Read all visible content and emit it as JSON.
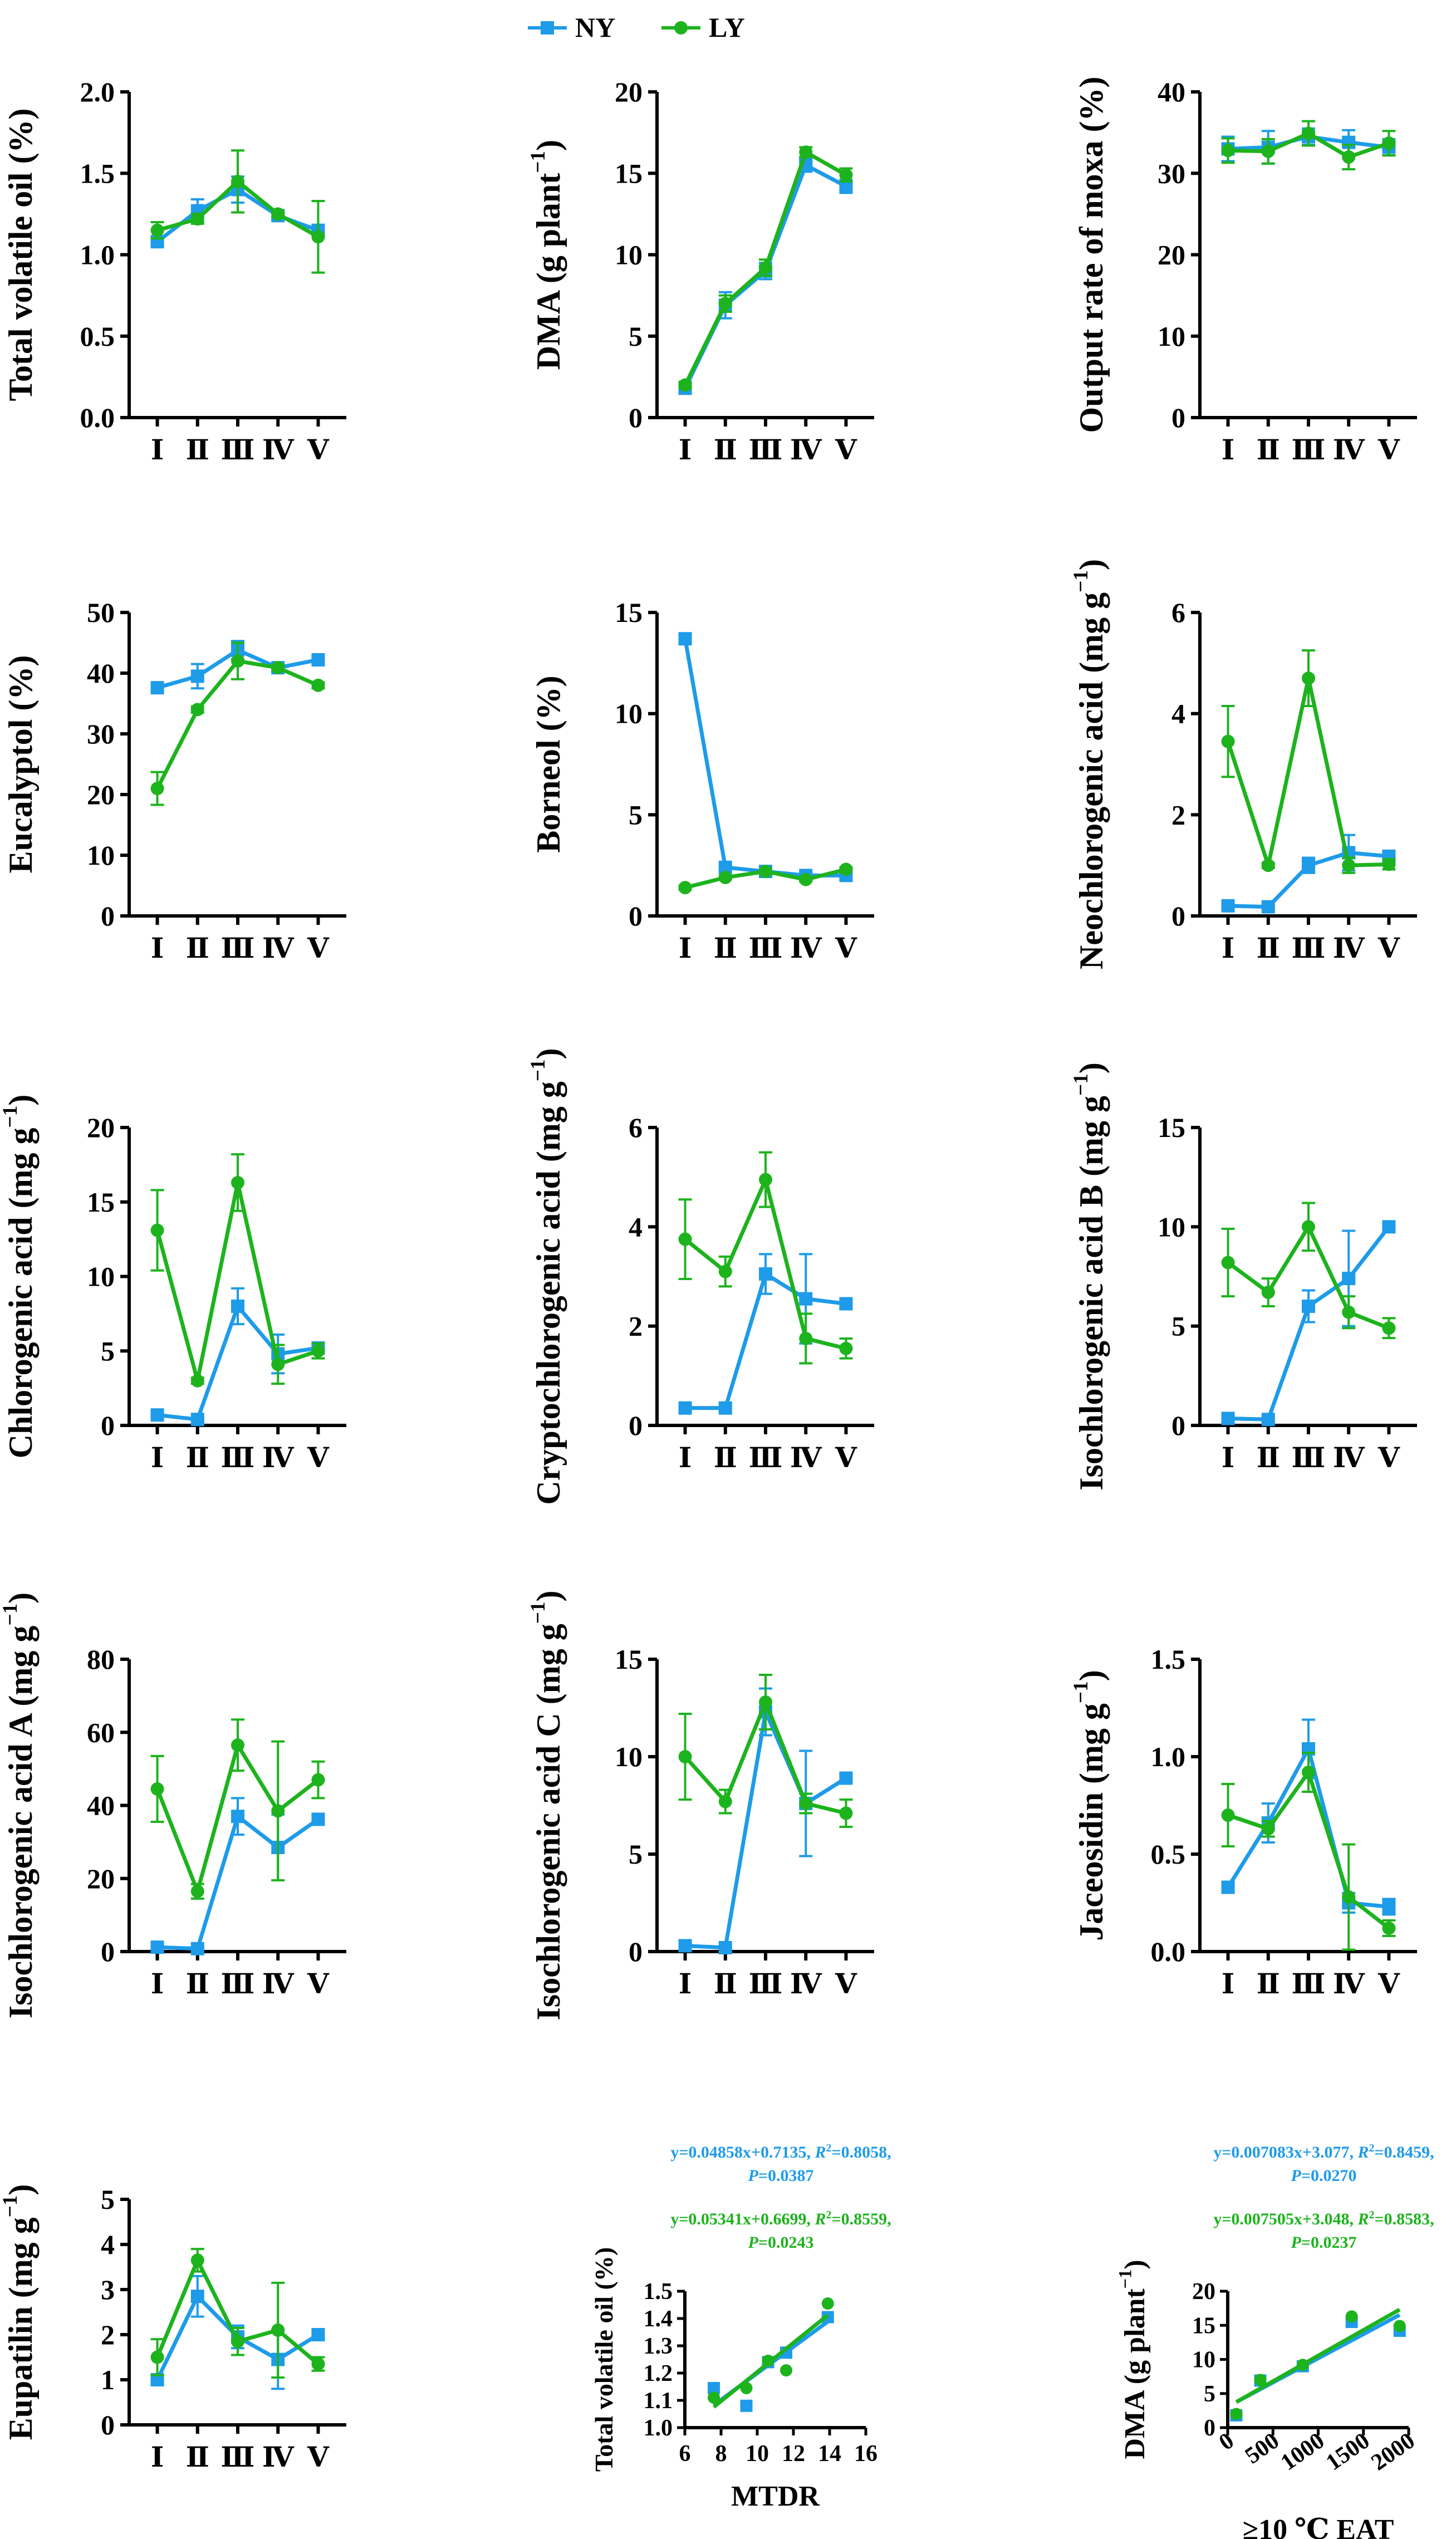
{
  "colors": {
    "NY": "#1E9BE9",
    "LY": "#1DB31D"
  },
  "legend": [
    {
      "label": "NY",
      "color": "#1E9BE9",
      "marker": "square"
    },
    {
      "label": "LY",
      "color": "#1DB31D",
      "marker": "circle"
    }
  ],
  "chart_data": [
    {
      "type": "line",
      "title": "",
      "xlabel": "",
      "ylabel": "Total volatile oil (%)",
      "categories": [
        "Ⅰ",
        "Ⅱ",
        "Ⅲ",
        "Ⅳ",
        "Ⅴ"
      ],
      "ylim": [
        0,
        2
      ],
      "yticks": [
        "0.0",
        "0.5",
        "1.0",
        "1.5",
        "2.0"
      ],
      "series": [
        {
          "name": "NY",
          "values": [
            1.08,
            1.27,
            1.4,
            1.24,
            1.15
          ],
          "errors": [
            0.02,
            0.07,
            0.08,
            0.02,
            0.02
          ]
        },
        {
          "name": "LY",
          "values": [
            1.15,
            1.22,
            1.45,
            1.25,
            1.11
          ],
          "errors": [
            0.05,
            0.03,
            0.19,
            0.02,
            0.22
          ]
        }
      ]
    },
    {
      "type": "line",
      "title": "",
      "xlabel": "",
      "ylabel": "DMA (g plant",
      "ylabel_sup": "−1",
      "ylabel_end": ")",
      "categories": [
        "Ⅰ",
        "Ⅱ",
        "Ⅲ",
        "Ⅳ",
        "Ⅴ"
      ],
      "ylim": [
        0,
        20
      ],
      "yticks": [
        "0",
        "5",
        "10",
        "15",
        "20"
      ],
      "series": [
        {
          "name": "NY",
          "values": [
            1.8,
            6.9,
            9.0,
            15.5,
            14.2
          ],
          "errors": [
            0.2,
            0.8,
            0.5,
            0.4,
            0.4
          ]
        },
        {
          "name": "LY",
          "values": [
            2.0,
            7.0,
            9.2,
            16.3,
            14.9
          ],
          "errors": [
            0.2,
            0.5,
            0.5,
            0.3,
            0.4
          ]
        }
      ]
    },
    {
      "type": "line",
      "title": "",
      "xlabel": "",
      "ylabel": "Output rate of moxa (%)",
      "categories": [
        "Ⅰ",
        "Ⅱ",
        "Ⅲ",
        "Ⅳ",
        "Ⅴ"
      ],
      "ylim": [
        0,
        40
      ],
      "yticks": [
        "0",
        "10",
        "20",
        "30",
        "40"
      ],
      "series": [
        {
          "name": "NY",
          "values": [
            33.0,
            33.2,
            34.5,
            33.8,
            33.2
          ],
          "errors": [
            1.5,
            2.0,
            1.0,
            1.5,
            1.0
          ]
        },
        {
          "name": "LY",
          "values": [
            32.8,
            32.7,
            34.9,
            32.0,
            33.7
          ],
          "errors": [
            1.5,
            1.5,
            1.5,
            1.5,
            1.5
          ]
        }
      ]
    },
    {
      "type": "line",
      "title": "",
      "xlabel": "",
      "ylabel": "Eucalyptol (%)",
      "categories": [
        "Ⅰ",
        "Ⅱ",
        "Ⅲ",
        "Ⅳ",
        "Ⅴ"
      ],
      "ylim": [
        0,
        50
      ],
      "yticks": [
        "0",
        "10",
        "20",
        "30",
        "40",
        "50"
      ],
      "series": [
        {
          "name": "NY",
          "values": [
            37.6,
            39.5,
            43.8,
            40.9,
            42.2
          ],
          "errors": [
            0.5,
            2.0,
            1.5,
            0.5,
            0.5
          ]
        },
        {
          "name": "LY",
          "values": [
            21.0,
            34.0,
            42.0,
            40.9,
            38.0
          ],
          "errors": [
            2.7,
            0.5,
            3.0,
            0.5,
            0.5
          ]
        }
      ]
    },
    {
      "type": "line",
      "title": "",
      "xlabel": "",
      "ylabel": "Borneol (%)",
      "categories": [
        "Ⅰ",
        "Ⅱ",
        "Ⅲ",
        "Ⅳ",
        "Ⅴ"
      ],
      "ylim": [
        0,
        15
      ],
      "yticks": [
        "0",
        "5",
        "10",
        "15"
      ],
      "series": [
        {
          "name": "NY",
          "values": [
            13.7,
            2.4,
            2.2,
            2.0,
            2.0
          ],
          "errors": [
            0.2,
            0.1,
            0.1,
            0.1,
            0.1
          ]
        },
        {
          "name": "LY",
          "values": [
            1.4,
            1.9,
            2.2,
            1.8,
            2.3
          ],
          "errors": [
            0.1,
            0.1,
            0.1,
            0.1,
            0.1
          ]
        }
      ]
    },
    {
      "type": "line",
      "title": "",
      "xlabel": "",
      "ylabel": "Neochlorogenic acid (mg g",
      "ylabel_sup": "−1",
      "ylabel_end": ")",
      "categories": [
        "Ⅰ",
        "Ⅱ",
        "Ⅲ",
        "Ⅳ",
        "Ⅴ"
      ],
      "ylim": [
        0,
        6
      ],
      "yticks": [
        "0",
        "2",
        "4",
        "6"
      ],
      "series": [
        {
          "name": "NY",
          "values": [
            0.2,
            0.18,
            1.0,
            1.25,
            1.18
          ],
          "errors": [
            0.05,
            0.05,
            0.15,
            0.35,
            0.05
          ]
        },
        {
          "name": "LY",
          "values": [
            3.45,
            1.0,
            4.7,
            1.0,
            1.02
          ],
          "errors": [
            0.7,
            0.05,
            0.55,
            0.15,
            0.1
          ]
        }
      ]
    },
    {
      "type": "line",
      "title": "",
      "xlabel": "",
      "ylabel": "Chlorogenic acid (mg g",
      "ylabel_sup": "−1",
      "ylabel_end": ")",
      "categories": [
        "Ⅰ",
        "Ⅱ",
        "Ⅲ",
        "Ⅳ",
        "Ⅴ"
      ],
      "ylim": [
        0,
        20
      ],
      "yticks": [
        "0",
        "5",
        "10",
        "15",
        "20"
      ],
      "series": [
        {
          "name": "NY",
          "values": [
            0.7,
            0.4,
            8.0,
            4.8,
            5.2
          ],
          "errors": [
            0.1,
            0.1,
            1.2,
            1.3,
            0.3
          ]
        },
        {
          "name": "LY",
          "values": [
            13.1,
            3.0,
            16.3,
            4.1,
            5.0
          ],
          "errors": [
            2.7,
            0.2,
            1.9,
            1.3,
            0.5
          ]
        }
      ]
    },
    {
      "type": "line",
      "title": "",
      "xlabel": "",
      "ylabel": "Cryptochlorogenic acid (mg g",
      "ylabel_sup": "−1",
      "ylabel_end": ")",
      "categories": [
        "Ⅰ",
        "Ⅱ",
        "Ⅲ",
        "Ⅳ",
        "Ⅴ"
      ],
      "ylim": [
        0,
        6
      ],
      "yticks": [
        "0",
        "2",
        "4",
        "6"
      ],
      "series": [
        {
          "name": "NY",
          "values": [
            0.35,
            0.35,
            3.05,
            2.55,
            2.45
          ],
          "errors": [
            0.05,
            0.05,
            0.4,
            0.9,
            0.1
          ]
        },
        {
          "name": "LY",
          "values": [
            3.75,
            3.1,
            4.95,
            1.75,
            1.55
          ],
          "errors": [
            0.8,
            0.3,
            0.55,
            0.5,
            0.2
          ]
        }
      ]
    },
    {
      "type": "line",
      "title": "",
      "xlabel": "",
      "ylabel": "Isochlorogenic acid B (mg g",
      "ylabel_sup": "−1",
      "ylabel_end": ")",
      "categories": [
        "Ⅰ",
        "Ⅱ",
        "Ⅲ",
        "Ⅳ",
        "Ⅴ"
      ],
      "ylim": [
        0,
        15
      ],
      "yticks": [
        "0",
        "5",
        "10",
        "15"
      ],
      "series": [
        {
          "name": "NY",
          "values": [
            0.35,
            0.3,
            6.0,
            7.4,
            10.0
          ],
          "errors": [
            0.1,
            0.1,
            0.8,
            2.4,
            0.2
          ]
        },
        {
          "name": "LY",
          "values": [
            8.2,
            6.7,
            10.0,
            5.7,
            4.9
          ],
          "errors": [
            1.7,
            0.7,
            1.2,
            0.8,
            0.5
          ]
        }
      ]
    },
    {
      "type": "line",
      "title": "",
      "xlabel": "",
      "ylabel": "Isochlorogenic acid A (mg g",
      "ylabel_sup": "−1",
      "ylabel_end": ")",
      "categories": [
        "Ⅰ",
        "Ⅱ",
        "Ⅲ",
        "Ⅳ",
        "Ⅴ"
      ],
      "ylim": [
        0,
        80
      ],
      "yticks": [
        "0",
        "20",
        "40",
        "60",
        "80"
      ],
      "series": [
        {
          "name": "NY",
          "values": [
            1.2,
            0.8,
            37.0,
            28.5,
            36.2
          ],
          "errors": [
            0.3,
            0.3,
            5.0,
            9.0,
            1.0
          ]
        },
        {
          "name": "LY",
          "values": [
            44.5,
            16.5,
            56.5,
            38.5,
            47.0
          ],
          "errors": [
            9.0,
            2.0,
            7.0,
            19.0,
            5.0
          ]
        }
      ]
    },
    {
      "type": "line",
      "title": "",
      "xlabel": "",
      "ylabel": "Isochlorogenic acid C (mg g",
      "ylabel_sup": "−1",
      "ylabel_end": ")",
      "categories": [
        "Ⅰ",
        "Ⅱ",
        "Ⅲ",
        "Ⅳ",
        "Ⅴ"
      ],
      "ylim": [
        0,
        15
      ],
      "yticks": [
        "0",
        "5",
        "10",
        "15"
      ],
      "series": [
        {
          "name": "NY",
          "values": [
            0.3,
            0.2,
            12.3,
            7.6,
            8.9
          ],
          "errors": [
            0.05,
            0.05,
            1.2,
            2.7,
            0.2
          ]
        },
        {
          "name": "LY",
          "values": [
            10.0,
            7.7,
            12.8,
            7.6,
            7.1
          ],
          "errors": [
            2.2,
            0.6,
            1.4,
            0.5,
            0.7
          ]
        }
      ]
    },
    {
      "type": "line",
      "title": "",
      "xlabel": "",
      "ylabel": "Jaceosidin (mg g",
      "ylabel_sup": "−1",
      "ylabel_end": ")",
      "categories": [
        "Ⅰ",
        "Ⅱ",
        "Ⅲ",
        "Ⅳ",
        "Ⅴ"
      ],
      "ylim": [
        0,
        1.5
      ],
      "yticks": [
        "0.0",
        "0.5",
        "1.0",
        "1.5"
      ],
      "series": [
        {
          "name": "NY",
          "values": [
            0.33,
            0.66,
            1.04,
            0.25,
            0.23
          ],
          "errors": [
            0.02,
            0.1,
            0.15,
            0.05,
            0.04
          ]
        },
        {
          "name": "LY",
          "values": [
            0.7,
            0.63,
            0.92,
            0.28,
            0.12
          ],
          "errors": [
            0.16,
            0.04,
            0.1,
            0.27,
            0.04
          ]
        }
      ]
    },
    {
      "type": "line",
      "title": "",
      "xlabel": "",
      "ylabel": "Eupatilin (mg g",
      "ylabel_sup": "−1",
      "ylabel_end": ")",
      "categories": [
        "Ⅰ",
        "Ⅱ",
        "Ⅲ",
        "Ⅳ",
        "Ⅴ"
      ],
      "ylim": [
        0,
        5
      ],
      "yticks": [
        "0",
        "1",
        "2",
        "3",
        "4",
        "5"
      ],
      "series": [
        {
          "name": "NY",
          "values": [
            1.0,
            2.85,
            1.95,
            1.45,
            2.0
          ],
          "errors": [
            0.1,
            0.45,
            0.25,
            0.65,
            0.05
          ]
        },
        {
          "name": "LY",
          "values": [
            1.5,
            3.65,
            1.85,
            2.1,
            1.35
          ],
          "errors": [
            0.4,
            0.25,
            0.3,
            1.05,
            0.15
          ]
        }
      ]
    },
    {
      "type": "scatter",
      "title": "",
      "xlabel": "MTDR",
      "ylabel": "Total volatile oil (%)",
      "xlim": [
        6,
        16
      ],
      "ylim": [
        1.0,
        1.5
      ],
      "xticks": [
        "6",
        "8",
        "10",
        "12",
        "14",
        "16"
      ],
      "yticks": [
        "1.0",
        "1.1",
        "1.2",
        "1.3",
        "1.4",
        "1.5"
      ],
      "series": [
        {
          "name": "NY",
          "x": [
            7.6,
            9.4,
            10.6,
            11.6,
            13.9
          ],
          "y": [
            1.145,
            1.08,
            1.24,
            1.275,
            1.405
          ],
          "fit": {
            "slope": 0.04858,
            "intercept": 0.7135,
            "range": [
              7.6,
              13.9
            ]
          }
        },
        {
          "name": "LY",
          "x": [
            7.6,
            9.4,
            10.6,
            11.6,
            13.9
          ],
          "y": [
            1.11,
            1.145,
            1.245,
            1.21,
            1.455
          ],
          "fit": {
            "slope": 0.05341,
            "intercept": 0.6699,
            "range": [
              7.6,
              13.9
            ]
          }
        }
      ],
      "annotations": [
        {
          "color": "NY",
          "line1_pre": "y=0.04858x+0.7135, ",
          "r2_label": "R",
          "r2_sup": "2",
          "r2_val": "=0.8058,",
          "line2_label": "P",
          "line2_val": "=0.0387"
        },
        {
          "color": "LY",
          "line1_pre": "y=0.05341x+0.6699, ",
          "r2_label": "R",
          "r2_sup": "2",
          "r2_val": "=0.8559,",
          "line2_label": "P",
          "line2_val": "=0.0243"
        }
      ]
    },
    {
      "type": "scatter",
      "title": "",
      "xlabel": "≥10 ℃ EAT",
      "ylabel": "DMA (g plant",
      "ylabel_sup": "−1",
      "ylabel_end": ")",
      "xlim": [
        0,
        2000
      ],
      "ylim": [
        0,
        20
      ],
      "xticks": [
        "0",
        "500",
        "1000",
        "1500",
        "2000"
      ],
      "yticks": [
        "0",
        "5",
        "10",
        "15",
        "20"
      ],
      "series": [
        {
          "name": "NY",
          "x": [
            95,
            360,
            830,
            1370,
            1900
          ],
          "y": [
            1.8,
            6.9,
            9.0,
            15.5,
            14.2
          ],
          "fit": {
            "slope": 0.007083,
            "intercept": 3.077,
            "range": [
              95,
              1900
            ]
          }
        },
        {
          "name": "LY",
          "x": [
            95,
            360,
            830,
            1370,
            1900
          ],
          "y": [
            2.0,
            7.0,
            9.2,
            16.3,
            14.9
          ],
          "fit": {
            "slope": 0.007505,
            "intercept": 3.048,
            "range": [
              95,
              1900
            ]
          }
        }
      ],
      "annotations": [
        {
          "color": "NY",
          "line1_pre": "y=0.007083x+3.077, ",
          "r2_label": "R",
          "r2_sup": "2",
          "r2_val": "=0.8459,",
          "line2_label": "P",
          "line2_val": "=0.0270"
        },
        {
          "color": "LY",
          "line1_pre": "y=0.007505x+3.048, ",
          "r2_label": "R",
          "r2_sup": "2",
          "r2_val": "=0.8583,",
          "line2_label": "P",
          "line2_val": "=0.0237"
        }
      ]
    }
  ]
}
